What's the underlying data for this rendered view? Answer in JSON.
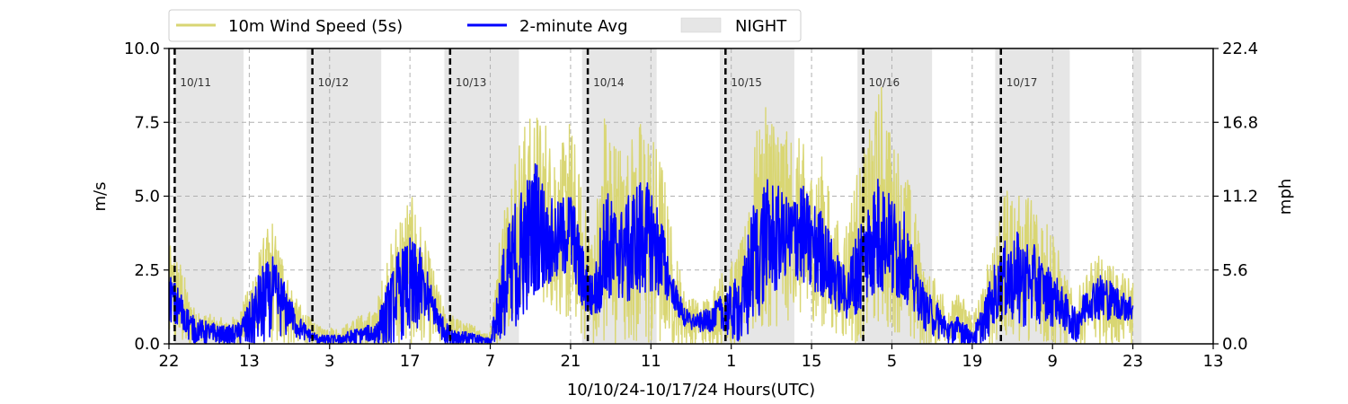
{
  "chart_data": {
    "type": "line",
    "xlabel": "10/10/24-10/17/24  Hours(UTC)",
    "ylabel_left": "m/s",
    "ylabel_right": "mph",
    "x_ticks": [
      "22",
      "13",
      "3",
      "17",
      "7",
      "21",
      "11",
      "1",
      "15",
      "5",
      "19",
      "9",
      "23",
      "13"
    ],
    "x_range_hours": [
      0,
      182
    ],
    "y_range_ms": [
      0,
      10
    ],
    "y_ticks_left": [
      "0.0",
      "2.5",
      "5.0",
      "7.5",
      "10.0"
    ],
    "y_ticks_right": [
      "0.0",
      "5.6",
      "11.2",
      "16.8",
      "22.4"
    ],
    "grid": true,
    "legend_placement": "top-left",
    "legend": [
      {
        "label": "10m Wind Speed (5s)",
        "color": "#d9d673"
      },
      {
        "label": "2-minute Avg",
        "color": "#0000ff"
      },
      {
        "label": "NIGHT",
        "color": "#e6e6e6"
      }
    ],
    "day_markers": [
      {
        "label": "10/11",
        "hour": 1
      },
      {
        "label": "10/12",
        "hour": 25
      },
      {
        "label": "10/13",
        "hour": 49
      },
      {
        "label": "10/14",
        "hour": 73
      },
      {
        "label": "10/15",
        "hour": 97
      },
      {
        "label": "10/16",
        "hour": 121
      },
      {
        "label": "10/17",
        "hour": 145
      }
    ],
    "night_periods_hours": [
      [
        0,
        0.3
      ],
      [
        1,
        13
      ],
      [
        24,
        37
      ],
      [
        48,
        61
      ],
      [
        72,
        85
      ],
      [
        96,
        109
      ],
      [
        120,
        133
      ],
      [
        144,
        157
      ],
      [
        168,
        169.5
      ]
    ],
    "series": [
      {
        "name": "2-minute Avg",
        "color": "#0000ff",
        "envelope_hours": [
          0,
          2,
          4,
          6,
          8,
          10,
          12,
          14,
          16,
          18,
          20,
          22,
          24,
          26,
          28,
          30,
          32,
          34,
          36,
          38,
          40,
          42,
          44,
          46,
          48,
          50,
          52,
          54,
          56,
          58,
          60,
          62,
          64,
          66,
          68,
          70,
          72,
          74,
          76,
          78,
          80,
          82,
          84,
          86,
          88,
          90,
          92,
          94,
          96,
          98,
          100,
          102,
          104,
          106,
          108,
          110,
          112,
          114,
          116,
          118,
          120,
          122,
          124,
          126,
          128,
          130,
          132,
          134,
          136,
          138,
          140,
          142,
          144,
          146,
          148,
          150,
          152,
          154,
          156,
          158,
          160,
          162,
          164,
          166,
          168
        ],
        "low_ms": [
          0.8,
          0.5,
          0.0,
          0.0,
          0.0,
          0.0,
          0.0,
          0.0,
          0.0,
          0.2,
          0.3,
          0.2,
          0.1,
          0.0,
          0.0,
          0.0,
          0.0,
          0.0,
          0.0,
          0.0,
          0.1,
          0.3,
          0.6,
          0.7,
          0.0,
          0.0,
          0.0,
          0.0,
          0.0,
          0.0,
          0.0,
          1.0,
          1.8,
          2.0,
          2.2,
          2.5,
          1.2,
          0.9,
          1.2,
          1.6,
          1.4,
          1.6,
          1.8,
          1.5,
          1.2,
          0.5,
          0.4,
          0.4,
          0.5,
          0.2,
          0.0,
          0.5,
          1.5,
          1.8,
          2.0,
          2.2,
          1.8,
          1.6,
          1.2,
          0.8,
          1.0,
          1.6,
          1.8,
          1.6,
          1.5,
          1.0,
          0.4,
          0.2,
          0.0,
          0.0,
          0.0,
          0.0,
          0.6,
          1.0,
          0.6,
          0.6,
          0.7,
          0.6,
          0.5,
          0.0,
          0.8,
          0.8,
          0.8,
          0.8,
          0.8
        ],
        "high_ms": [
          2.4,
          1.8,
          1.0,
          0.8,
          0.7,
          0.6,
          0.7,
          1.4,
          2.6,
          3.0,
          2.2,
          1.2,
          0.6,
          0.3,
          0.3,
          0.3,
          0.5,
          0.6,
          0.7,
          2.0,
          3.2,
          3.6,
          3.2,
          1.8,
          0.8,
          0.5,
          0.4,
          0.3,
          0.2,
          3.0,
          4.8,
          5.6,
          6.3,
          5.0,
          4.8,
          5.4,
          3.4,
          2.2,
          5.4,
          4.5,
          5.0,
          5.6,
          5.4,
          4.2,
          2.2,
          1.2,
          1.0,
          1.2,
          1.6,
          2.0,
          2.6,
          5.2,
          5.6,
          5.4,
          5.0,
          5.6,
          4.8,
          4.6,
          3.2,
          2.6,
          4.0,
          5.0,
          5.9,
          5.0,
          4.6,
          2.8,
          1.8,
          1.4,
          0.8,
          1.0,
          0.4,
          1.4,
          2.8,
          3.6,
          3.8,
          3.6,
          3.0,
          2.6,
          1.8,
          1.2,
          2.0,
          2.4,
          2.2,
          1.8,
          1.6
        ]
      },
      {
        "name": "10m Wind Speed (5s)",
        "color": "#d9d673",
        "envelope_hours": [
          0,
          2,
          4,
          6,
          8,
          10,
          12,
          14,
          16,
          18,
          20,
          22,
          24,
          26,
          28,
          30,
          32,
          34,
          36,
          38,
          40,
          42,
          44,
          46,
          48,
          50,
          52,
          54,
          56,
          58,
          60,
          62,
          64,
          66,
          68,
          70,
          72,
          74,
          76,
          78,
          80,
          82,
          84,
          86,
          88,
          90,
          92,
          94,
          96,
          98,
          100,
          102,
          104,
          106,
          108,
          110,
          112,
          114,
          116,
          118,
          120,
          122,
          124,
          126,
          128,
          130,
          132,
          134,
          136,
          138,
          140,
          142,
          144,
          146,
          148,
          150,
          152,
          154,
          156,
          158,
          160,
          162,
          164,
          166,
          168
        ],
        "low_ms": [
          0.0,
          0.0,
          0.0,
          0.0,
          0.0,
          0.0,
          0.0,
          0.0,
          0.0,
          0.0,
          0.0,
          0.0,
          0.0,
          0.0,
          0.0,
          0.0,
          0.0,
          0.0,
          0.0,
          0.0,
          0.0,
          0.0,
          0.0,
          0.0,
          0.0,
          0.0,
          0.0,
          0.0,
          0.0,
          0.0,
          1.0,
          1.5,
          1.8,
          1.2,
          1.0,
          0.8,
          0.2,
          0.0,
          0.0,
          0.0,
          0.0,
          0.0,
          0.0,
          0.0,
          0.0,
          0.0,
          0.0,
          0.0,
          0.0,
          0.0,
          0.0,
          0.4,
          0.6,
          0.6,
          0.8,
          1.0,
          0.8,
          0.6,
          0.4,
          0.2,
          0.0,
          0.6,
          0.8,
          0.4,
          0.4,
          0.0,
          0.0,
          0.0,
          0.0,
          0.0,
          0.0,
          0.0,
          0.0,
          0.0,
          0.0,
          0.0,
          0.0,
          0.0,
          0.0,
          0.0,
          0.0,
          0.0,
          0.0,
          0.0,
          0.0
        ],
        "high_ms": [
          3.4,
          2.8,
          1.4,
          1.0,
          1.0,
          0.8,
          1.0,
          2.0,
          3.4,
          4.3,
          3.0,
          1.6,
          1.0,
          0.6,
          0.6,
          0.5,
          0.9,
          1.0,
          1.2,
          3.0,
          4.4,
          5.2,
          4.0,
          2.6,
          1.2,
          0.9,
          0.7,
          0.6,
          0.4,
          4.5,
          6.4,
          7.5,
          7.9,
          7.6,
          6.4,
          7.8,
          5.2,
          3.6,
          8.2,
          6.8,
          7.2,
          7.6,
          7.2,
          6.2,
          3.4,
          1.8,
          1.5,
          1.6,
          2.4,
          2.8,
          3.6,
          7.0,
          8.0,
          8.2,
          7.0,
          7.0,
          6.2,
          6.4,
          4.2,
          4.2,
          6.0,
          7.2,
          9.0,
          7.2,
          6.4,
          4.6,
          2.4,
          2.2,
          1.4,
          1.8,
          1.0,
          2.0,
          4.2,
          5.2,
          5.0,
          5.3,
          4.6,
          4.0,
          2.4,
          1.6,
          2.6,
          3.0,
          2.8,
          2.4,
          2.2
        ]
      }
    ]
  }
}
